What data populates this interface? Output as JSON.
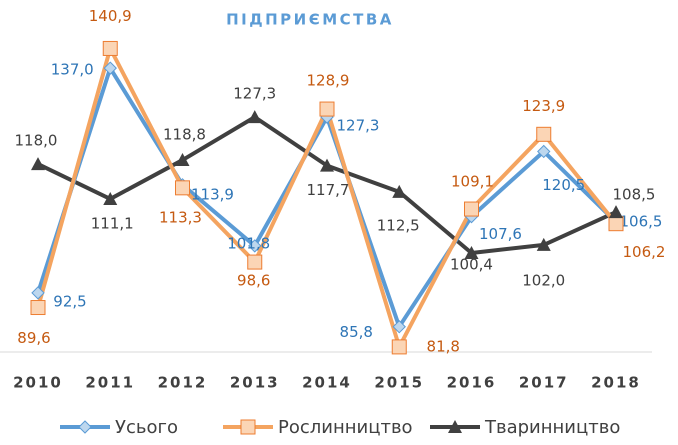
{
  "chart_data": {
    "type": "line",
    "title": "ПІДПРИЄМСТВА",
    "categories": [
      "2010",
      "2011",
      "2012",
      "2013",
      "2014",
      "2015",
      "2016",
      "2017",
      "2018"
    ],
    "ylim": [
      80,
      150
    ],
    "series": [
      {
        "name": "Усього",
        "color": "#5b9bd5",
        "label_color": "#2e75b6",
        "values": [
          92.5,
          137.0,
          113.9,
          101.8,
          127.3,
          85.8,
          107.6,
          120.5,
          106.5
        ],
        "value_labels": [
          "92,5",
          "137,0",
          "113,9",
          "101,8",
          "127,3",
          "85,8",
          "107,6",
          "120,5",
          "106,5"
        ]
      },
      {
        "name": "Рослинництво",
        "color": "#f4a460",
        "label_color": "#c55a11",
        "values": [
          89.6,
          140.9,
          113.3,
          98.6,
          128.9,
          81.8,
          109.1,
          123.9,
          106.2
        ],
        "value_labels": [
          "89,6",
          "140,9",
          "113,3",
          "98,6",
          "128,9",
          "81,8",
          "109,1",
          "123,9",
          "106,2"
        ]
      },
      {
        "name": "Тваринництво",
        "color": "#404040",
        "label_color": "#404040",
        "values": [
          118.0,
          111.1,
          118.8,
          127.3,
          117.7,
          112.5,
          100.4,
          102.0,
          108.5
        ],
        "value_labels": [
          "118,0",
          "111,1",
          "118,8",
          "127,3",
          "117,7",
          "112,5",
          "100,4",
          "102,0",
          "108,5"
        ]
      }
    ]
  }
}
